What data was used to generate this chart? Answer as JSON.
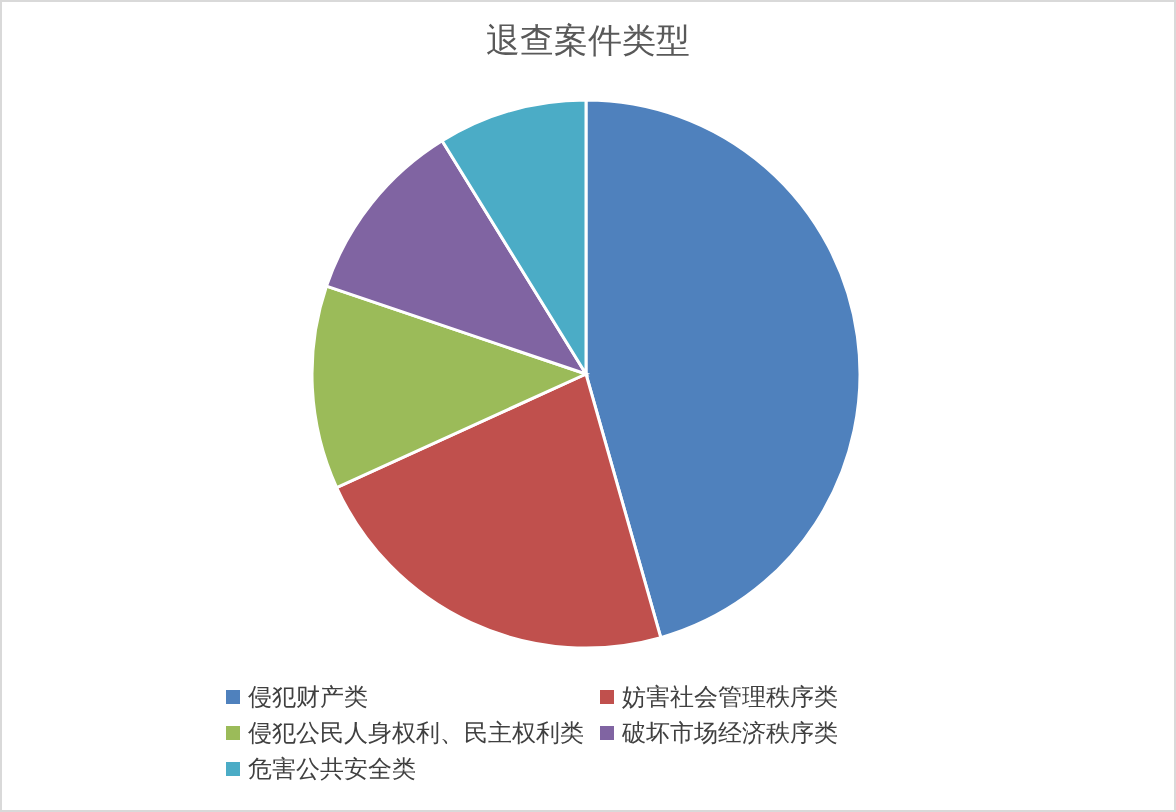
{
  "chart_data": {
    "type": "pie",
    "title": "退查案件类型",
    "categories": [
      "侵犯财产类",
      "妨害社会管理秩序类",
      "侵犯公民人身权利、民主权利类",
      "破坏市场经济秩序类",
      "危害公共安全类"
    ],
    "values": [
      45.6,
      22.6,
      12,
      11,
      8.8
    ],
    "colors": [
      "#4f81bd",
      "#c0504d",
      "#9bbb59",
      "#8064a2",
      "#4bacc6"
    ],
    "legend": "bottom"
  }
}
